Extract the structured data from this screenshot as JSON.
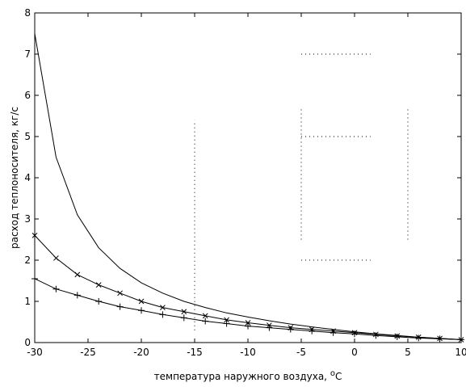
{
  "chart_data": {
    "type": "line",
    "title": "",
    "xlabel": "температура наружного воздуха,",
    "xlabel_unit_superscript": "o",
    "xlabel_unit": "C",
    "ylabel": "расход теплоносителя, кг/с",
    "xlim": [
      -30,
      10
    ],
    "ylim": [
      0,
      8
    ],
    "xticks": [
      -30,
      -25,
      -20,
      -15,
      -10,
      -5,
      0,
      5,
      10
    ],
    "yticks": [
      0,
      1,
      2,
      3,
      4,
      5,
      6,
      7,
      8
    ],
    "grid": "partial-dotted",
    "series": [
      {
        "marker": "none",
        "x": [
          -30,
          -29,
          -28,
          -27,
          -26,
          -25,
          -24,
          -22,
          -20,
          -18,
          -16,
          -14,
          -12,
          -10,
          -8,
          -6,
          -4,
          -2,
          0,
          2,
          4,
          6,
          8,
          10
        ],
        "values": [
          7.5,
          6.0,
          4.5,
          3.8,
          3.1,
          2.7,
          2.3,
          1.8,
          1.45,
          1.2,
          1.0,
          0.85,
          0.72,
          0.62,
          0.53,
          0.45,
          0.38,
          0.32,
          0.26,
          0.21,
          0.17,
          0.13,
          0.1,
          0.07
        ]
      },
      {
        "marker": "x",
        "x": [
          -30,
          -28,
          -26,
          -24,
          -22,
          -20,
          -18,
          -16,
          -14,
          -12,
          -10,
          -8,
          -6,
          -4,
          -2,
          0,
          2,
          4,
          6,
          8,
          10
        ],
        "values": [
          2.6,
          2.05,
          1.65,
          1.4,
          1.2,
          1.0,
          0.85,
          0.75,
          0.65,
          0.55,
          0.48,
          0.42,
          0.36,
          0.32,
          0.28,
          0.24,
          0.2,
          0.16,
          0.13,
          0.1,
          0.07
        ]
      },
      {
        "marker": "+",
        "x": [
          -30,
          -28,
          -26,
          -24,
          -22,
          -20,
          -18,
          -16,
          -14,
          -12,
          -10,
          -8,
          -6,
          -4,
          -2,
          0,
          2,
          4,
          6,
          8,
          10
        ],
        "values": [
          1.55,
          1.3,
          1.15,
          1.0,
          0.87,
          0.78,
          0.68,
          0.6,
          0.52,
          0.46,
          0.4,
          0.36,
          0.32,
          0.28,
          0.24,
          0.21,
          0.17,
          0.14,
          0.11,
          0.09,
          0.07
        ]
      }
    ],
    "colors": {
      "line": "#000000",
      "grid": "#000000",
      "background": "#ffffff"
    }
  }
}
